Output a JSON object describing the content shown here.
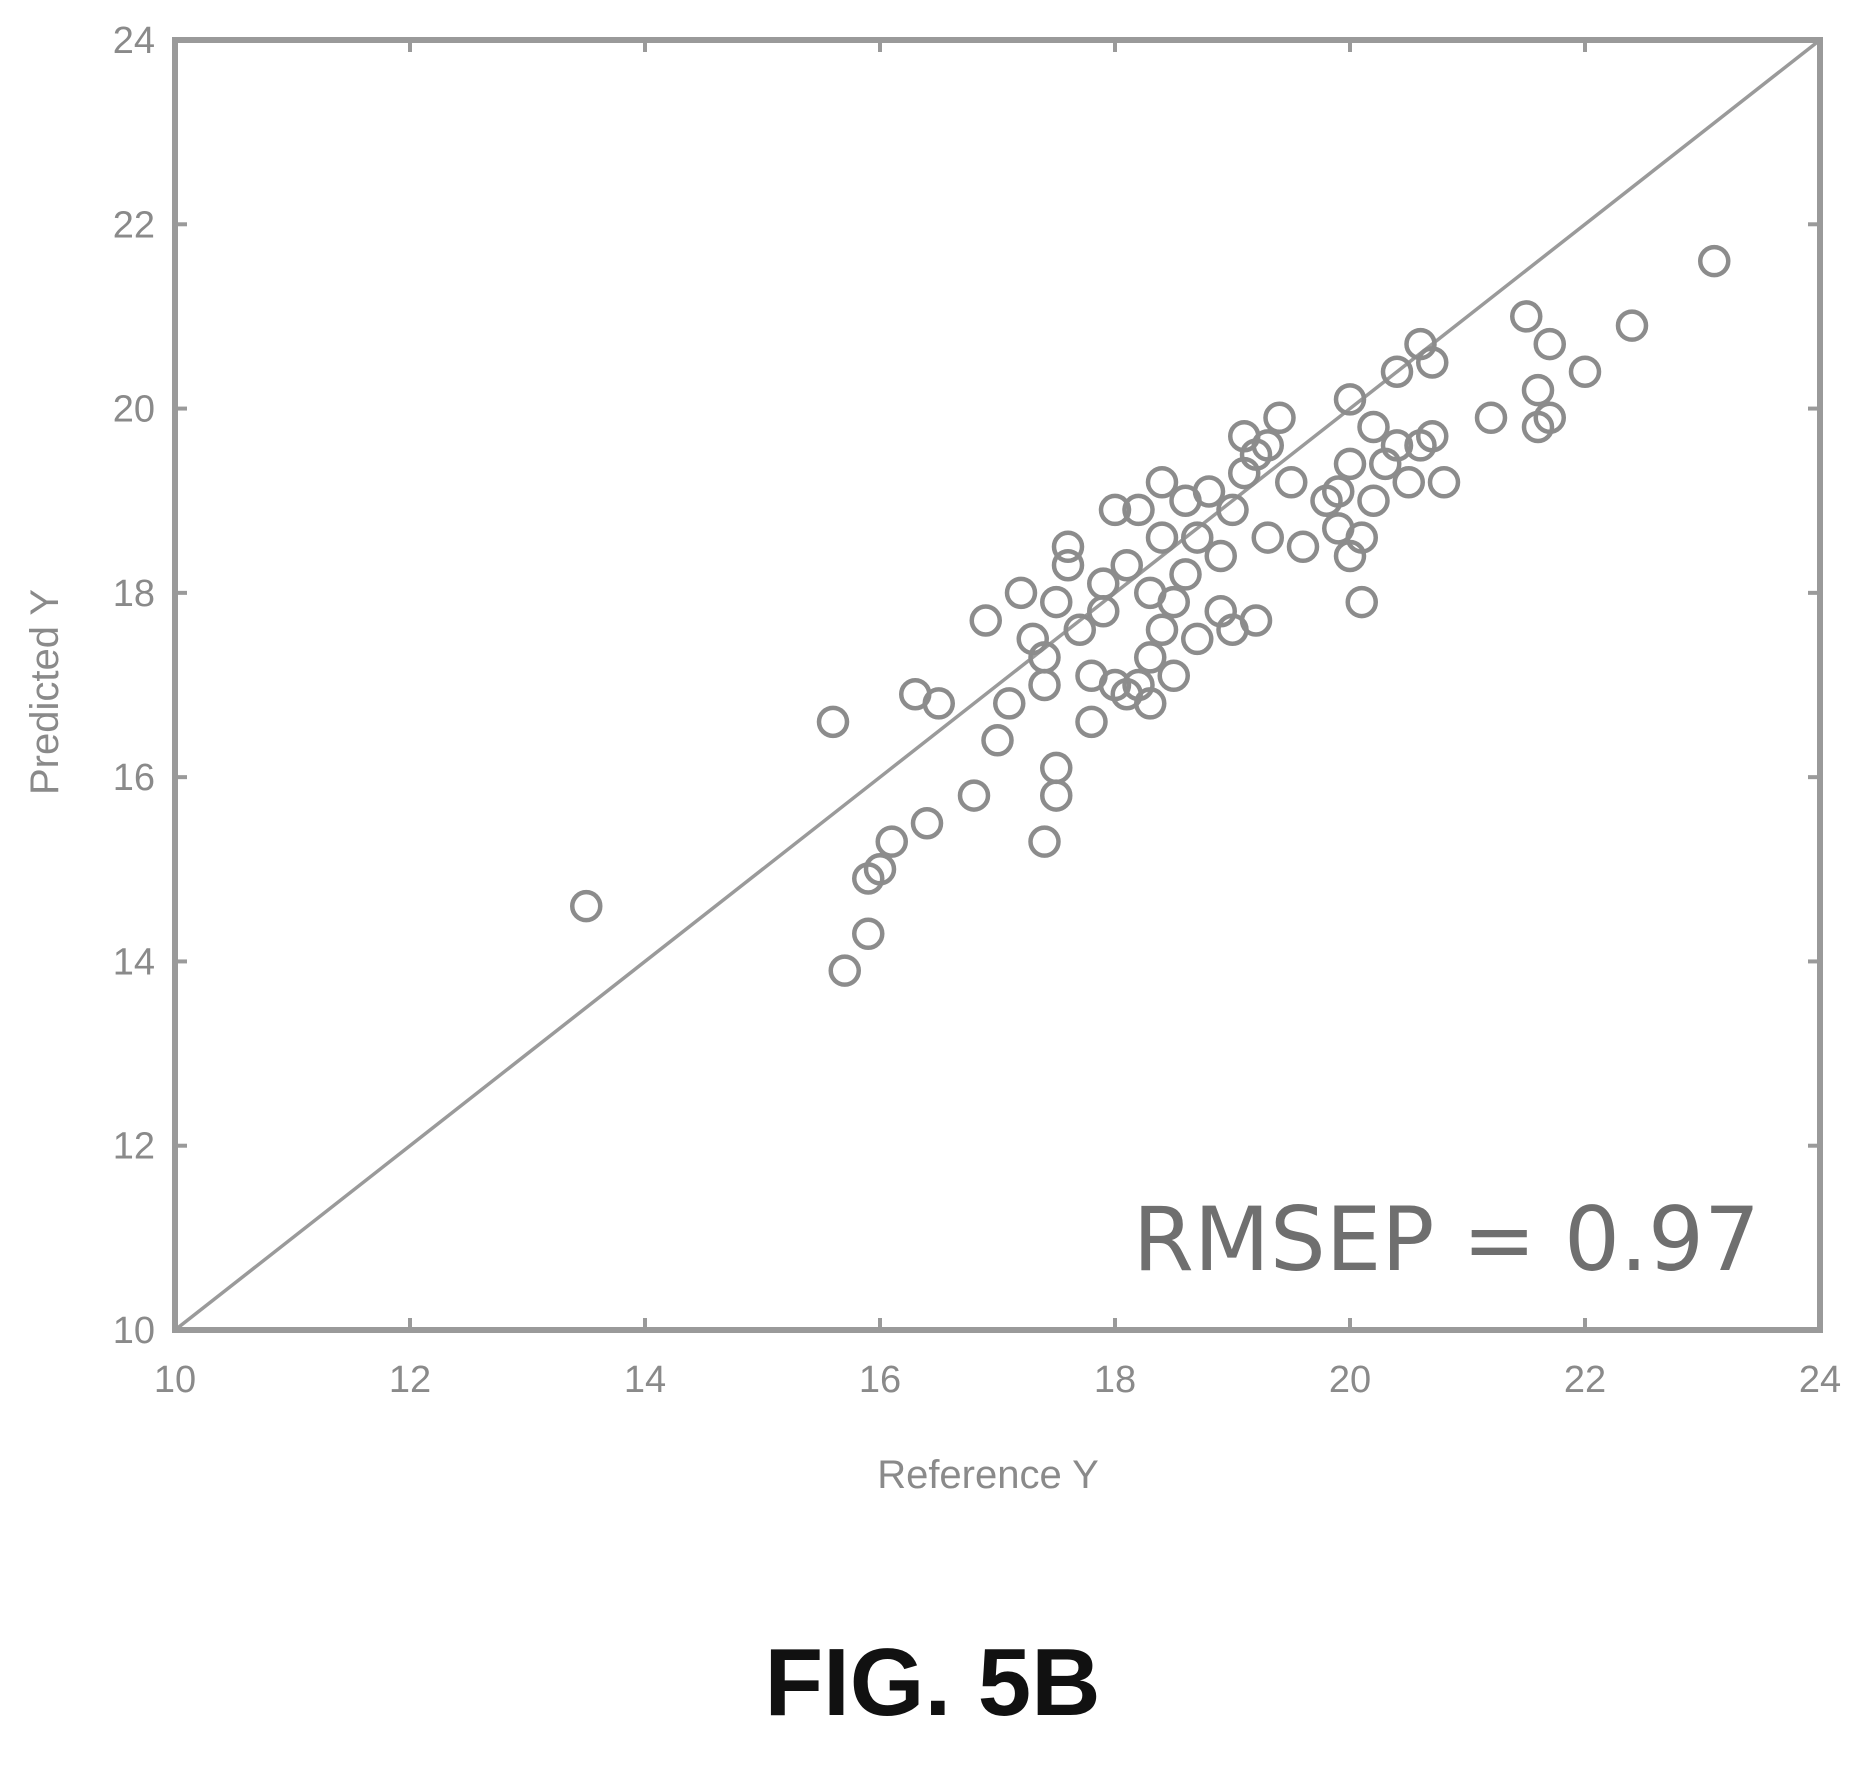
{
  "chart_data": {
    "type": "scatter",
    "xlabel": "Reference Y",
    "ylabel": "Predicted Y",
    "xlim": [
      10,
      24
    ],
    "ylim": [
      10,
      24
    ],
    "x_ticks": [
      "10",
      "12",
      "14",
      "16",
      "18",
      "20",
      "22",
      "24"
    ],
    "y_ticks": [
      "10",
      "12",
      "14",
      "16",
      "18",
      "20",
      "22",
      "24"
    ],
    "grid": false,
    "reference_line": {
      "from": [
        10,
        10
      ],
      "to": [
        24,
        24
      ]
    },
    "annotation": "RMSEP = 0.97",
    "colors": {
      "axes": "#9a9a9a",
      "markers": "#8c8c8c",
      "line": "#9a9a9a"
    },
    "series": [
      {
        "marker": "open-circle",
        "points": [
          [
            13.5,
            14.6
          ],
          [
            15.6,
            16.6
          ],
          [
            15.7,
            13.9
          ],
          [
            15.9,
            14.3
          ],
          [
            15.9,
            14.9
          ],
          [
            16.0,
            15.0
          ],
          [
            16.1,
            15.3
          ],
          [
            16.4,
            15.5
          ],
          [
            16.3,
            16.9
          ],
          [
            16.5,
            16.8
          ],
          [
            16.8,
            15.8
          ],
          [
            16.9,
            17.7
          ],
          [
            17.0,
            16.4
          ],
          [
            17.1,
            16.8
          ],
          [
            17.2,
            18.0
          ],
          [
            17.3,
            17.5
          ],
          [
            17.4,
            17.0
          ],
          [
            17.4,
            17.3
          ],
          [
            17.4,
            15.3
          ],
          [
            17.5,
            15.8
          ],
          [
            17.5,
            16.1
          ],
          [
            17.5,
            17.9
          ],
          [
            17.6,
            18.3
          ],
          [
            17.6,
            18.5
          ],
          [
            17.7,
            17.6
          ],
          [
            17.8,
            16.6
          ],
          [
            17.8,
            17.1
          ],
          [
            17.9,
            17.8
          ],
          [
            17.9,
            18.1
          ],
          [
            18.0,
            17.0
          ],
          [
            18.0,
            18.9
          ],
          [
            18.1,
            16.9
          ],
          [
            18.1,
            18.3
          ],
          [
            18.2,
            17.0
          ],
          [
            18.2,
            18.9
          ],
          [
            18.3,
            16.8
          ],
          [
            18.3,
            17.3
          ],
          [
            18.3,
            18.0
          ],
          [
            18.4,
            18.6
          ],
          [
            18.4,
            17.6
          ],
          [
            18.4,
            19.2
          ],
          [
            18.5,
            17.1
          ],
          [
            18.5,
            17.9
          ],
          [
            18.6,
            18.2
          ],
          [
            18.6,
            19.0
          ],
          [
            18.7,
            18.6
          ],
          [
            18.7,
            17.5
          ],
          [
            18.8,
            19.1
          ],
          [
            18.9,
            18.4
          ],
          [
            18.9,
            17.8
          ],
          [
            19.0,
            18.9
          ],
          [
            19.0,
            17.6
          ],
          [
            19.1,
            19.3
          ],
          [
            19.1,
            19.7
          ],
          [
            19.2,
            19.5
          ],
          [
            19.2,
            17.7
          ],
          [
            19.3,
            19.6
          ],
          [
            19.3,
            18.6
          ],
          [
            19.4,
            19.9
          ],
          [
            19.5,
            19.2
          ],
          [
            19.6,
            18.5
          ],
          [
            19.8,
            19.0
          ],
          [
            19.9,
            18.7
          ],
          [
            19.9,
            19.1
          ],
          [
            20.0,
            18.4
          ],
          [
            20.0,
            20.1
          ],
          [
            20.0,
            19.4
          ],
          [
            20.1,
            18.6
          ],
          [
            20.1,
            17.9
          ],
          [
            20.2,
            19.0
          ],
          [
            20.2,
            19.8
          ],
          [
            20.3,
            19.4
          ],
          [
            20.4,
            19.6
          ],
          [
            20.4,
            20.4
          ],
          [
            20.5,
            19.2
          ],
          [
            20.6,
            19.6
          ],
          [
            20.6,
            20.7
          ],
          [
            20.7,
            19.7
          ],
          [
            20.7,
            20.5
          ],
          [
            20.8,
            19.2
          ],
          [
            21.2,
            19.9
          ],
          [
            21.5,
            21.0
          ],
          [
            21.6,
            20.2
          ],
          [
            21.6,
            19.8
          ],
          [
            21.7,
            19.9
          ],
          [
            21.7,
            20.7
          ],
          [
            22.0,
            20.4
          ],
          [
            22.4,
            20.9
          ],
          [
            23.1,
            21.6
          ]
        ]
      }
    ]
  },
  "figure_caption": "FIG. 5B"
}
